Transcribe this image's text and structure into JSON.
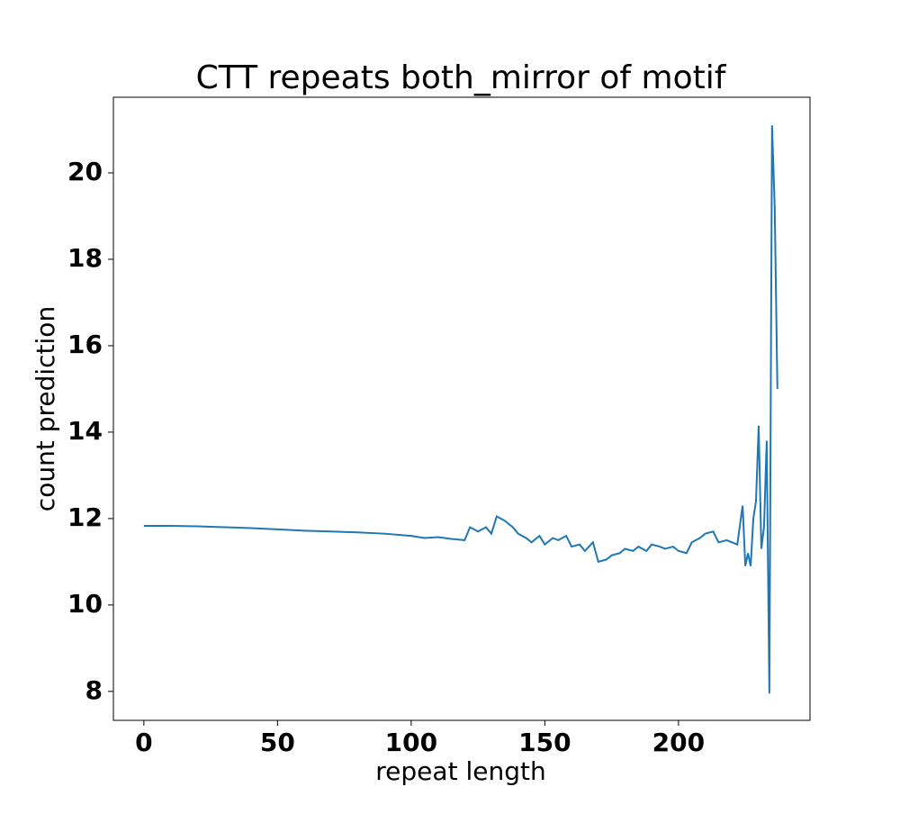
{
  "chart_data": {
    "type": "line",
    "title": "CTT repeats both_mirror of motif",
    "xlabel": "repeat length",
    "ylabel": "count prediction",
    "x": [
      0,
      10,
      20,
      30,
      40,
      50,
      60,
      70,
      80,
      90,
      100,
      105,
      110,
      115,
      120,
      122,
      125,
      128,
      130,
      132,
      135,
      138,
      140,
      143,
      145,
      148,
      150,
      153,
      155,
      158,
      160,
      163,
      165,
      168,
      170,
      173,
      175,
      178,
      180,
      183,
      185,
      188,
      190,
      193,
      195,
      198,
      200,
      203,
      205,
      208,
      210,
      213,
      215,
      218,
      220,
      222,
      224,
      225,
      226,
      227,
      228,
      229,
      230,
      231,
      232,
      233,
      234,
      235,
      236,
      237
    ],
    "series": [
      {
        "name": "count prediction",
        "color": "#1f77b4",
        "values": [
          11.83,
          11.83,
          11.82,
          11.8,
          11.78,
          11.75,
          11.72,
          11.7,
          11.68,
          11.65,
          11.6,
          11.55,
          11.57,
          11.53,
          11.5,
          11.8,
          11.7,
          11.8,
          11.65,
          12.05,
          11.95,
          11.8,
          11.65,
          11.55,
          11.45,
          11.6,
          11.4,
          11.55,
          11.5,
          11.6,
          11.35,
          11.4,
          11.25,
          11.45,
          11.0,
          11.05,
          11.15,
          11.2,
          11.3,
          11.25,
          11.35,
          11.25,
          11.4,
          11.35,
          11.3,
          11.35,
          11.25,
          11.2,
          11.45,
          11.55,
          11.65,
          11.7,
          11.45,
          11.5,
          11.45,
          11.4,
          12.3,
          10.9,
          11.2,
          10.9,
          12.0,
          12.4,
          14.15,
          11.3,
          11.8,
          13.8,
          7.95,
          21.1,
          19.2,
          15.0
        ]
      }
    ],
    "xlim": [
      -11.4,
      249.2
    ],
    "ylim": [
      7.33,
      21.75
    ],
    "xticks": [
      0,
      50,
      100,
      150,
      200
    ],
    "yticks": [
      8,
      10,
      12,
      14,
      16,
      18,
      20
    ]
  }
}
